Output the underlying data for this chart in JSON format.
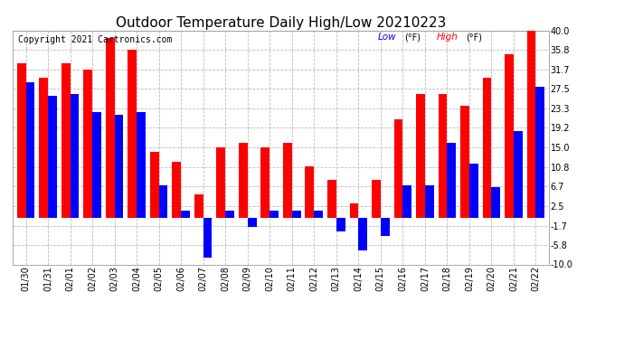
{
  "title": "Outdoor Temperature Daily High/Low 20210223",
  "copyright": "Copyright 2021 Cartronics.com",
  "legend_low": "Low",
  "legend_high": "High",
  "legend_unit": "(°F)",
  "dates": [
    "01/30",
    "01/31",
    "02/01",
    "02/02",
    "02/03",
    "02/04",
    "02/05",
    "02/06",
    "02/07",
    "02/08",
    "02/09",
    "02/10",
    "02/11",
    "02/12",
    "02/13",
    "02/14",
    "02/15",
    "02/16",
    "02/17",
    "02/18",
    "02/19",
    "02/20",
    "02/21",
    "02/22"
  ],
  "high_values": [
    33.0,
    30.0,
    33.0,
    31.7,
    38.5,
    35.8,
    14.0,
    12.0,
    5.0,
    15.0,
    16.0,
    15.0,
    16.0,
    11.0,
    8.0,
    3.0,
    8.0,
    21.0,
    26.5,
    26.5,
    24.0,
    30.0,
    35.0,
    40.0
  ],
  "low_values": [
    29.0,
    26.0,
    26.5,
    22.5,
    22.0,
    22.5,
    7.0,
    1.5,
    -8.5,
    1.5,
    -2.0,
    1.5,
    1.5,
    1.5,
    -3.0,
    -7.0,
    -4.0,
    7.0,
    7.0,
    16.0,
    11.5,
    6.5,
    18.5,
    28.0
  ],
  "ylim": [
    -10.0,
    40.0
  ],
  "yticks": [
    40.0,
    35.8,
    31.7,
    27.5,
    23.3,
    19.2,
    15.0,
    10.8,
    6.7,
    2.5,
    -1.7,
    -5.8,
    -10.0
  ],
  "high_color": "#ff0000",
  "low_color": "#0000ff",
  "bg_color": "#ffffff",
  "plot_bg_color": "#ffffff",
  "grid_color": "#bbbbbb",
  "title_fontsize": 11,
  "copyright_fontsize": 7,
  "tick_fontsize": 7,
  "bar_width": 0.4
}
